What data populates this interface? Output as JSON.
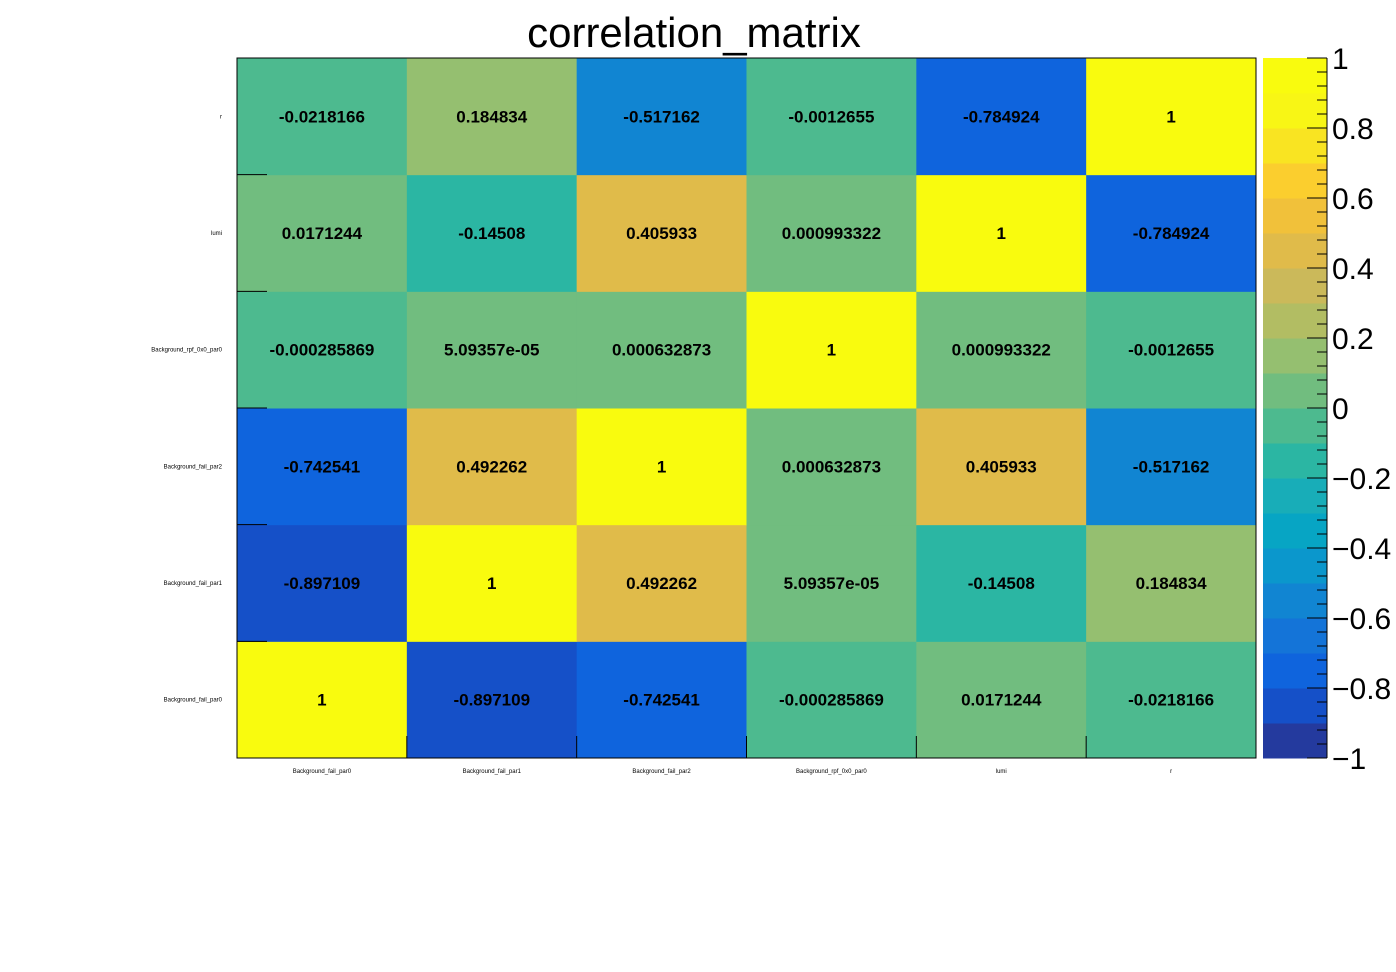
{
  "chart_data": {
    "type": "heatmap",
    "title": "correlation_matrix",
    "x_categories": [
      "Background_fail_par0",
      "Background_fail_par1",
      "Background_fail_par2",
      "Background_rpf_0x0_par0",
      "lumi",
      "r"
    ],
    "y_categories": [
      "Background_fail_par0",
      "Background_fail_par1",
      "Background_fail_par2",
      "Background_rpf_0x0_par0",
      "lumi",
      "r"
    ],
    "values": [
      [
        1,
        -0.897109,
        -0.742541,
        -0.000285869,
        0.0171244,
        -0.0218166
      ],
      [
        -0.897109,
        1,
        0.492262,
        5.09357e-05,
        -0.14508,
        0.184834
      ],
      [
        -0.742541,
        0.492262,
        1,
        0.000632873,
        0.405933,
        -0.517162
      ],
      [
        -0.000285869,
        5.09357e-05,
        0.000632873,
        1,
        0.000993322,
        -0.0012655
      ],
      [
        0.0171244,
        -0.14508,
        0.405933,
        0.000993322,
        1,
        -0.784924
      ],
      [
        -0.0218166,
        0.184834,
        -0.517162,
        -0.0012655,
        -0.784924,
        1
      ]
    ],
    "labels": [
      [
        "1",
        "-0.897109",
        "-0.742541",
        "-0.000285869",
        "0.0171244",
        "-0.0218166"
      ],
      [
        "-0.897109",
        "1",
        "0.492262",
        "5.09357e-05",
        "-0.14508",
        "0.184834"
      ],
      [
        "-0.742541",
        "0.492262",
        "1",
        "0.000632873",
        "0.405933",
        "-0.517162"
      ],
      [
        "-0.000285869",
        "5.09357e-05",
        "0.000632873",
        "1",
        "0.000993322",
        "-0.0012655"
      ],
      [
        "0.0171244",
        "-0.14508",
        "0.405933",
        "0.000993322",
        "1",
        "-0.784924"
      ],
      [
        "-0.0218166",
        "0.184834",
        "-0.517162",
        "-0.0012655",
        "-0.784924",
        "1"
      ]
    ],
    "zlim": [
      -1,
      1
    ],
    "z_ticks": [
      1,
      0.8,
      0.6,
      0.4,
      0.2,
      0,
      -0.2,
      -0.4,
      -0.6,
      -0.8,
      -1
    ],
    "z_tick_labels": [
      "1",
      "0.8",
      "0.6",
      "0.4",
      "0.2",
      "0",
      "−0.2",
      "−0.4",
      "−0.6",
      "−0.8",
      "−1"
    ],
    "palette": [
      "#243a9e",
      "#1550c8",
      "#0f64dd",
      "#1474d8",
      "#1185d2",
      "#0b97cc",
      "#07a5c4",
      "#18adb8",
      "#2bb6a3",
      "#4dba8f",
      "#71bd7f",
      "#95bf70",
      "#b2bd63",
      "#cbb95a",
      "#e0bb4a",
      "#f1c13a",
      "#fbce2e",
      "#f9e422",
      "#f8f615",
      "#f9fb0e"
    ],
    "grid": false,
    "colorbar": "right"
  }
}
